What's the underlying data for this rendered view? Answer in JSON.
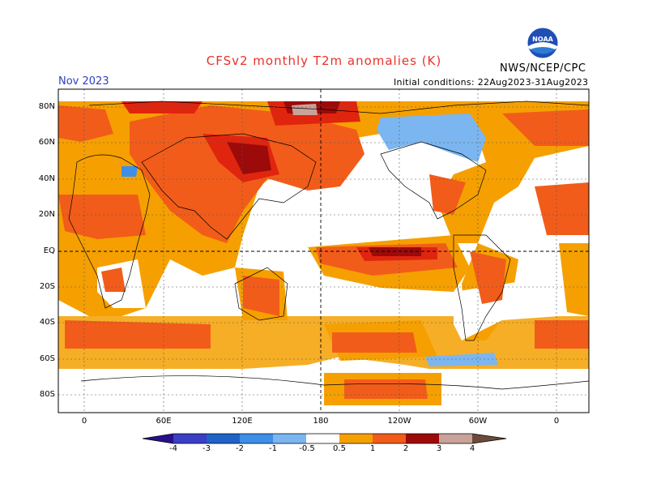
{
  "header": {
    "title": "CFSv2 monthly T2m anomalies (K)",
    "month": "Nov 2023",
    "initial_conditions": "Initial conditions: 22Aug2023-31Aug2023",
    "agency": "NWS/NCEP/CPC",
    "logo_text": "NOAA"
  },
  "axes": {
    "lat_labels": [
      "80N",
      "60N",
      "40N",
      "20N",
      "EQ",
      "20S",
      "40S",
      "60S",
      "80S"
    ],
    "lon_labels": [
      "0",
      "60E",
      "120E",
      "180",
      "120W",
      "60W",
      "0"
    ]
  },
  "colorbar": {
    "labels": [
      "-4",
      "-3",
      "-2",
      "-1",
      "-0.5",
      "0.5",
      "1",
      "2",
      "3",
      "4"
    ],
    "colors": {
      "lt_-4": "#2a0f8a",
      "-4_-3": "#3a3fc4",
      "-3_-2": "#1f62c8",
      "-2_-1": "#3f8ee8",
      "-1_-0.5": "#7bb6f0",
      "-0.5_0.5": "#ffffff",
      "0.5_1": "#f5a000",
      "1_2": "#f25c1a",
      "2_3": "#e0250f",
      "3_4": "#9c0a0a",
      "4_5": "#c9a39a",
      "gt_5": "#6e4a3a"
    }
  },
  "colors": {
    "grid": "#555555",
    "coast": "#000000"
  }
}
